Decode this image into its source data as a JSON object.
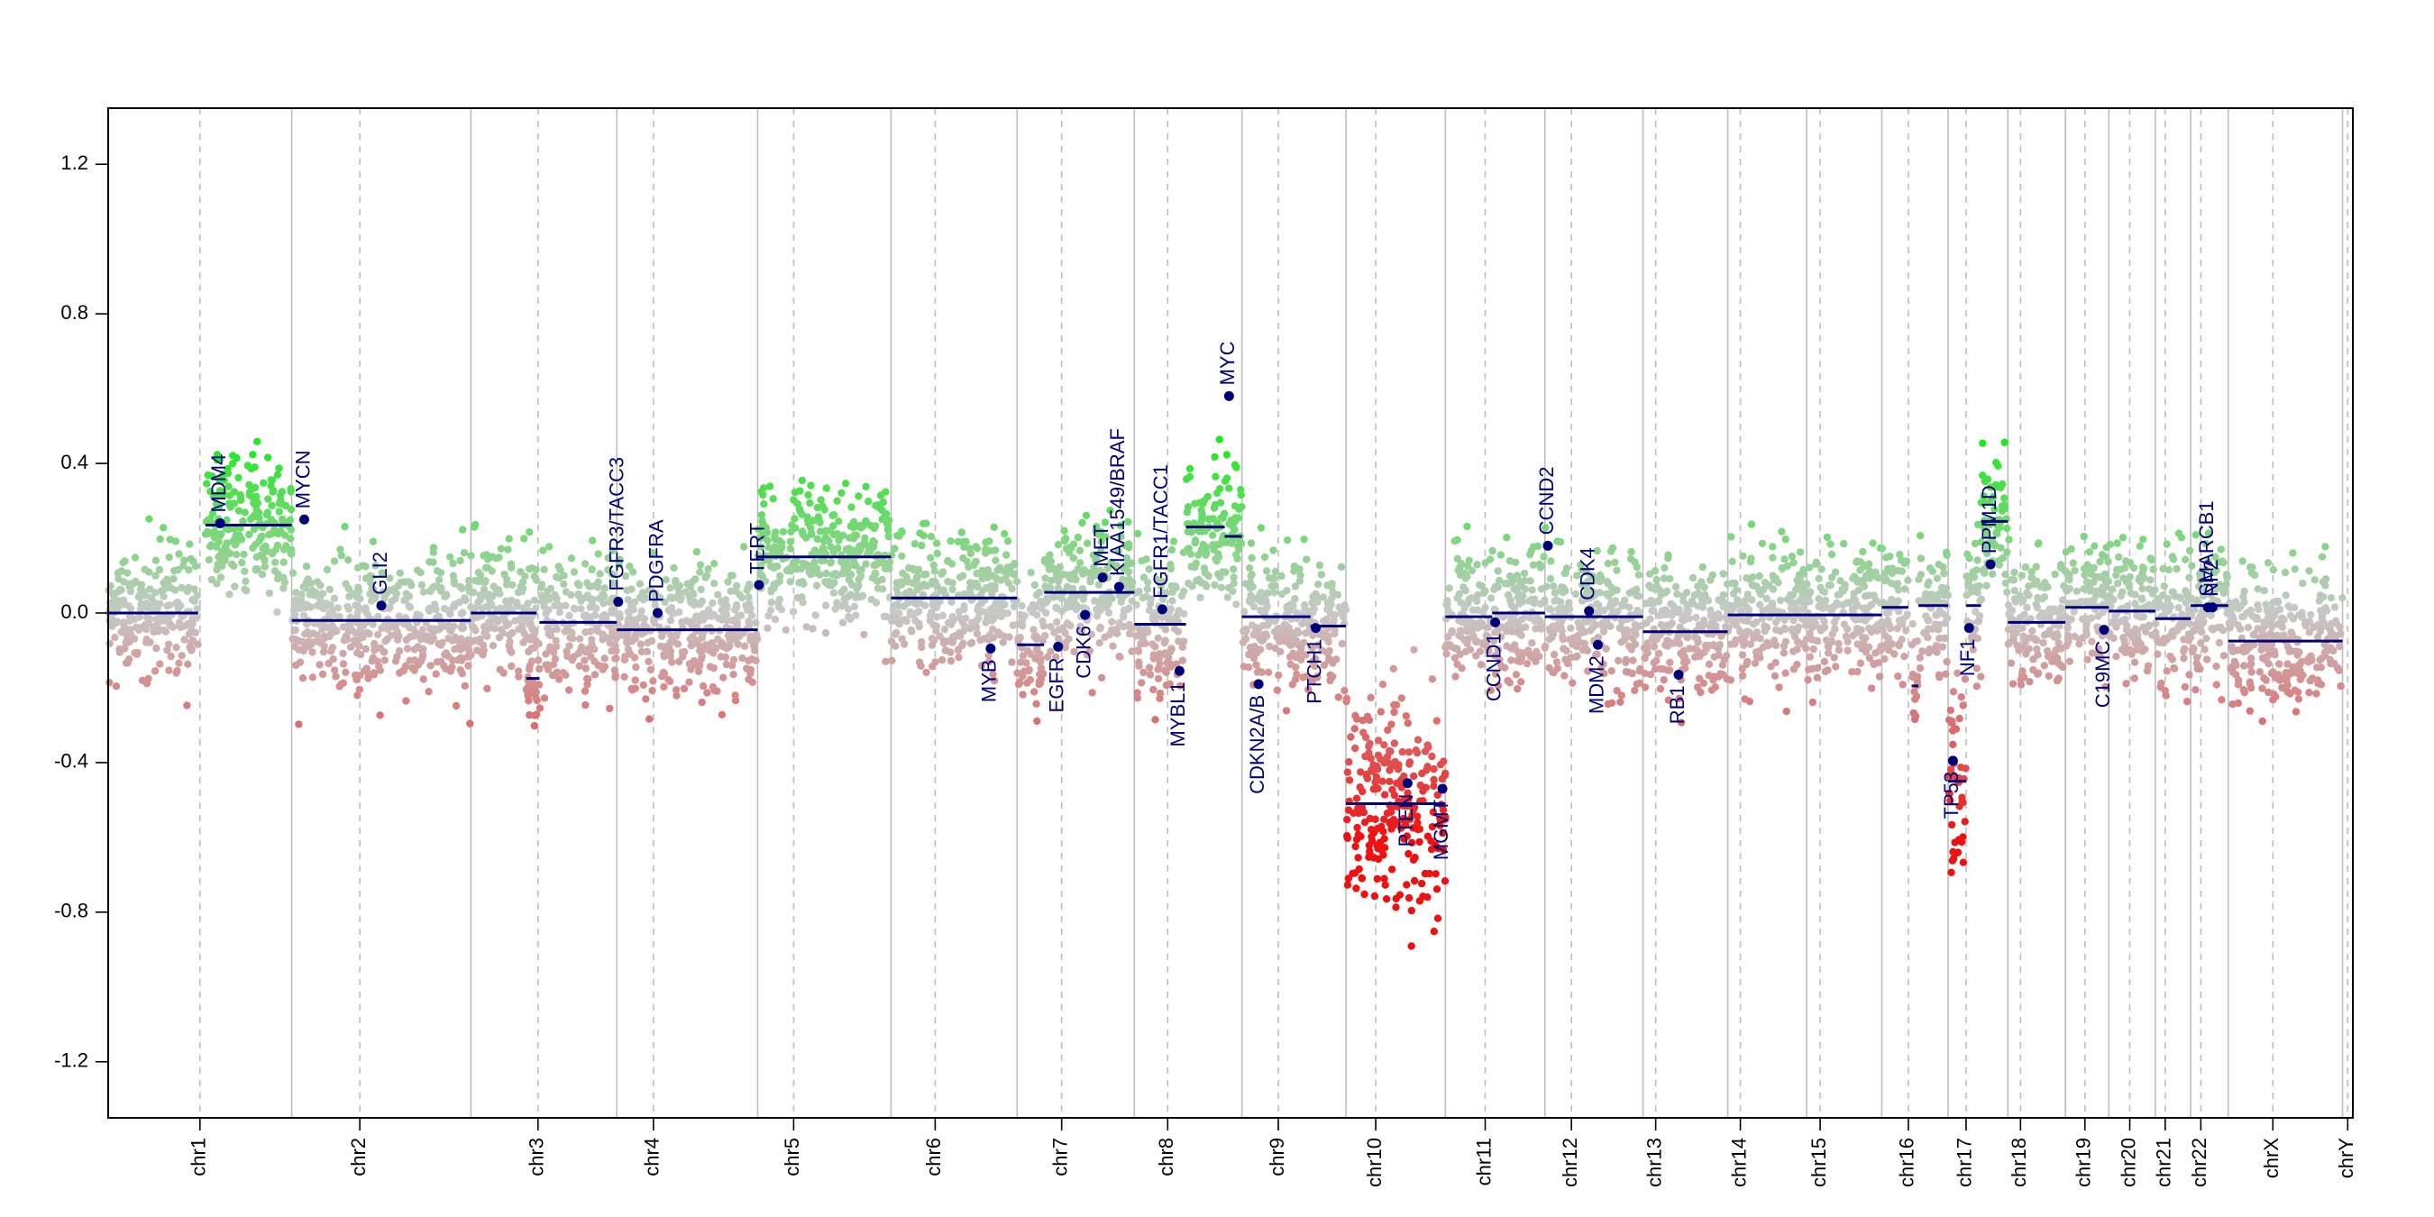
{
  "chart_data": {
    "type": "scatter",
    "title": "",
    "xlabel": "",
    "ylabel": "",
    "ylim": [
      -1.35,
      1.35
    ],
    "yticks": [
      -1.2,
      -0.8,
      -0.4,
      0.0,
      0.4,
      0.8,
      1.2
    ],
    "ytick_labels": [
      "-1.2",
      "-0.8",
      "-0.4",
      "0.0",
      "0.4",
      "0.8",
      "1.2"
    ],
    "grid": false,
    "colors": {
      "gain": "#22e822",
      "loss": "#ee1111",
      "neutral": "#c8c8c8",
      "segment": "#00007a",
      "gene": "#00007a",
      "boundary": "#bdbdbd"
    },
    "chromosomes": [
      {
        "name": "chr1",
        "length": 249,
        "centromere": 0.5,
        "segments": [
          {
            "start": 0,
            "end": 0.49,
            "value": 0.0
          },
          {
            "start": 0.53,
            "end": 1.0,
            "value": 0.235
          }
        ]
      },
      {
        "name": "chr2",
        "length": 243,
        "centromere": 0.38,
        "segments": [
          {
            "start": 0,
            "end": 1.0,
            "value": -0.02
          }
        ]
      },
      {
        "name": "chr3",
        "length": 198,
        "centromere": 0.46,
        "segments": [
          {
            "start": 0,
            "end": 0.45,
            "value": 0.0
          },
          {
            "start": 0.38,
            "end": 0.47,
            "value": -0.175
          },
          {
            "start": 0.47,
            "end": 1.0,
            "value": -0.025
          }
        ]
      },
      {
        "name": "chr4",
        "length": 191,
        "centromere": 0.26,
        "segments": [
          {
            "start": 0,
            "end": 1.0,
            "value": -0.045
          }
        ]
      },
      {
        "name": "chr5",
        "length": 181,
        "centromere": 0.27,
        "segments": [
          {
            "start": 0,
            "end": 1.0,
            "value": 0.15
          }
        ]
      },
      {
        "name": "chr6",
        "length": 171,
        "centromere": 0.35,
        "segments": [
          {
            "start": 0,
            "end": 1.0,
            "value": 0.04
          }
        ]
      },
      {
        "name": "chr7",
        "length": 159,
        "centromere": 0.38,
        "segments": [
          {
            "start": 0,
            "end": 0.23,
            "value": -0.085
          },
          {
            "start": 0.23,
            "end": 1.0,
            "value": 0.055
          }
        ]
      },
      {
        "name": "chr8",
        "length": 146,
        "centromere": 0.31,
        "segments": [
          {
            "start": 0,
            "end": 0.48,
            "value": -0.03
          },
          {
            "start": 0.48,
            "end": 0.84,
            "value": 0.23
          },
          {
            "start": 0.84,
            "end": 1.0,
            "value": 0.205
          }
        ]
      },
      {
        "name": "chr9",
        "length": 141,
        "centromere": 0.35,
        "segments": [
          {
            "start": 0,
            "end": 0.66,
            "value": -0.01
          },
          {
            "start": 0.66,
            "end": 1.0,
            "value": -0.035
          }
        ]
      },
      {
        "name": "chr10",
        "length": 135,
        "centromere": 0.3,
        "segments": [
          {
            "start": 0,
            "end": 1.0,
            "value": -0.51
          }
        ]
      },
      {
        "name": "chr11",
        "length": 135,
        "centromere": 0.4,
        "segments": [
          {
            "start": 0,
            "end": 0.47,
            "value": -0.01
          },
          {
            "start": 0.47,
            "end": 1.0,
            "value": 0.0
          }
        ]
      },
      {
        "name": "chr12",
        "length": 133,
        "centromere": 0.27,
        "segments": [
          {
            "start": 0,
            "end": 1.0,
            "value": -0.01
          }
        ]
      },
      {
        "name": "chr13",
        "length": 115,
        "centromere": 0.15,
        "segments": [
          {
            "start": 0,
            "end": 1.0,
            "value": -0.05
          }
        ]
      },
      {
        "name": "chr14",
        "length": 107,
        "centromere": 0.16,
        "segments": [
          {
            "start": 0,
            "end": 1.0,
            "value": -0.005
          }
        ]
      },
      {
        "name": "chr15",
        "length": 102,
        "centromere": 0.18,
        "segments": [
          {
            "start": 0,
            "end": 1.0,
            "value": -0.005
          }
        ]
      },
      {
        "name": "chr16",
        "length": 90,
        "centromere": 0.4,
        "segments": [
          {
            "start": 0,
            "end": 0.4,
            "value": 0.015
          },
          {
            "start": 0.45,
            "end": 0.55,
            "value": -0.195
          },
          {
            "start": 0.55,
            "end": 1.0,
            "value": 0.02
          }
        ]
      },
      {
        "name": "chr17",
        "length": 81,
        "centromere": 0.3,
        "segments": [
          {
            "start": 0,
            "end": 0.3,
            "value": -0.45
          },
          {
            "start": 0.3,
            "end": 0.55,
            "value": 0.02
          },
          {
            "start": 0.55,
            "end": 1.0,
            "value": 0.245
          }
        ]
      },
      {
        "name": "chr18",
        "length": 78,
        "centromere": 0.22,
        "segments": [
          {
            "start": 0,
            "end": 1.0,
            "value": -0.025
          }
        ]
      },
      {
        "name": "chr19",
        "length": 59,
        "centromere": 0.45,
        "segments": [
          {
            "start": 0,
            "end": 1.0,
            "value": 0.015
          }
        ]
      },
      {
        "name": "chr20",
        "length": 63,
        "centromere": 0.45,
        "segments": [
          {
            "start": 0,
            "end": 1.0,
            "value": 0.005
          }
        ]
      },
      {
        "name": "chr21",
        "length": 48,
        "centromere": 0.28,
        "segments": [
          {
            "start": 0,
            "end": 1.0,
            "value": -0.015
          }
        ]
      },
      {
        "name": "chr22",
        "length": 51,
        "centromere": 0.27,
        "segments": [
          {
            "start": 0,
            "end": 1.0,
            "value": 0.02
          }
        ]
      },
      {
        "name": "chrX",
        "length": 155,
        "centromere": 0.39,
        "segments": [
          {
            "start": 0,
            "end": 1.0,
            "value": -0.075
          }
        ]
      },
      {
        "name": "chrY",
        "length": 14,
        "centromere": 0.5,
        "segments": []
      }
    ],
    "genes": [
      {
        "name": "MDM4",
        "chrom": "chr1",
        "pos": 0.61,
        "value": 0.24
      },
      {
        "name": "MYCN",
        "chrom": "chr2",
        "pos": 0.07,
        "value": 0.25
      },
      {
        "name": "GLI2",
        "chrom": "chr2",
        "pos": 0.5,
        "value": 0.02
      },
      {
        "name": "FGFR3/TACC3",
        "chrom": "chr4",
        "pos": 0.01,
        "value": 0.03
      },
      {
        "name": "PDGFRA",
        "chrom": "chr4",
        "pos": 0.29,
        "value": 0.0
      },
      {
        "name": "TERT",
        "chrom": "chr5",
        "pos": 0.01,
        "value": 0.075
      },
      {
        "name": "MYB",
        "chrom": "chr6",
        "pos": 0.79,
        "value": -0.095
      },
      {
        "name": "EGFR",
        "chrom": "chr7",
        "pos": 0.35,
        "value": -0.09
      },
      {
        "name": "CDK6",
        "chrom": "chr7",
        "pos": 0.58,
        "value": -0.005
      },
      {
        "name": "MET",
        "chrom": "chr7",
        "pos": 0.73,
        "value": 0.095
      },
      {
        "name": "KIAA1549/BRAF",
        "chrom": "chr7",
        "pos": 0.87,
        "value": 0.07
      },
      {
        "name": "FGFR1/TACC1",
        "chrom": "chr8",
        "pos": 0.26,
        "value": 0.01
      },
      {
        "name": "MYBL1",
        "chrom": "chr8",
        "pos": 0.42,
        "value": -0.155
      },
      {
        "name": "MYC",
        "chrom": "chr8",
        "pos": 0.88,
        "value": 0.58
      },
      {
        "name": "CDKN2A/B",
        "chrom": "chr9",
        "pos": 0.16,
        "value": -0.19
      },
      {
        "name": "PTCH1",
        "chrom": "chr9",
        "pos": 0.71,
        "value": -0.04
      },
      {
        "name": "PTEN",
        "chrom": "chr10",
        "pos": 0.62,
        "value": -0.455
      },
      {
        "name": "MGMT",
        "chrom": "chr10",
        "pos": 0.97,
        "value": -0.47
      },
      {
        "name": "CCND1",
        "chrom": "chr11",
        "pos": 0.5,
        "value": -0.025
      },
      {
        "name": "CCND2",
        "chrom": "chr12",
        "pos": 0.03,
        "value": 0.18
      },
      {
        "name": "CDK4",
        "chrom": "chr12",
        "pos": 0.45,
        "value": 0.005
      },
      {
        "name": "MDM2",
        "chrom": "chr12",
        "pos": 0.54,
        "value": -0.085
      },
      {
        "name": "RB1",
        "chrom": "chr13",
        "pos": 0.42,
        "value": -0.165
      },
      {
        "name": "TP53",
        "chrom": "chr17",
        "pos": 0.08,
        "value": -0.395
      },
      {
        "name": "NF1",
        "chrom": "chr17",
        "pos": 0.35,
        "value": -0.04
      },
      {
        "name": "PPM1D",
        "chrom": "chr17",
        "pos": 0.71,
        "value": 0.13
      },
      {
        "name": "C19MC",
        "chrom": "chr19",
        "pos": 0.89,
        "value": -0.045
      },
      {
        "name": "SMARCB1",
        "chrom": "chr22",
        "pos": 0.46,
        "value": 0.015
      },
      {
        "name": "NF2",
        "chrom": "chr22",
        "pos": 0.58,
        "value": 0.015
      }
    ]
  }
}
